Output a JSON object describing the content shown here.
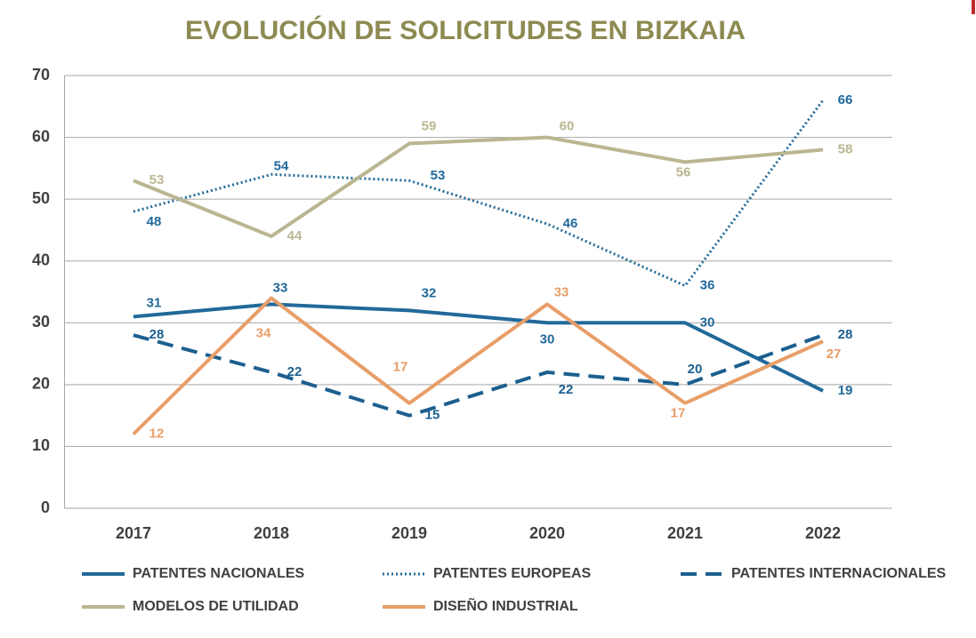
{
  "chart_data": {
    "type": "line",
    "title": "EVOLUCIÓN DE SOLICITUDES EN BIZKAIA",
    "categories": [
      "2017",
      "2018",
      "2019",
      "2020",
      "2021",
      "2022"
    ],
    "series": [
      {
        "name": "PATENTES NACIONALES",
        "color": "#21699a",
        "line_style": "solid",
        "values": [
          31,
          33,
          32,
          30,
          30,
          19
        ]
      },
      {
        "name": "PATENTES EUROPEAS",
        "color": "#21699a",
        "line_style": "dotted",
        "values": [
          48,
          54,
          53,
          46,
          36,
          66
        ]
      },
      {
        "name": "PATENTES INTERNACIONALES",
        "color": "#1c5f8f",
        "line_style": "dashed",
        "values": [
          28,
          22,
          15,
          22,
          20,
          28
        ]
      },
      {
        "name": "MODELOS DE UTILIDAD",
        "color": "#bab691",
        "line_style": "solid",
        "values": [
          53,
          44,
          59,
          60,
          56,
          58
        ]
      },
      {
        "name": "DISEÑO INDUSTRIAL",
        "color": "#e89e68",
        "line_style": "solid",
        "values": [
          12,
          34,
          17,
          33,
          17,
          27
        ]
      }
    ],
    "ylim": [
      0,
      70
    ],
    "yticks": [
      0,
      10,
      20,
      30,
      40,
      50,
      60,
      70
    ],
    "grid": true,
    "legend": "bottom"
  }
}
